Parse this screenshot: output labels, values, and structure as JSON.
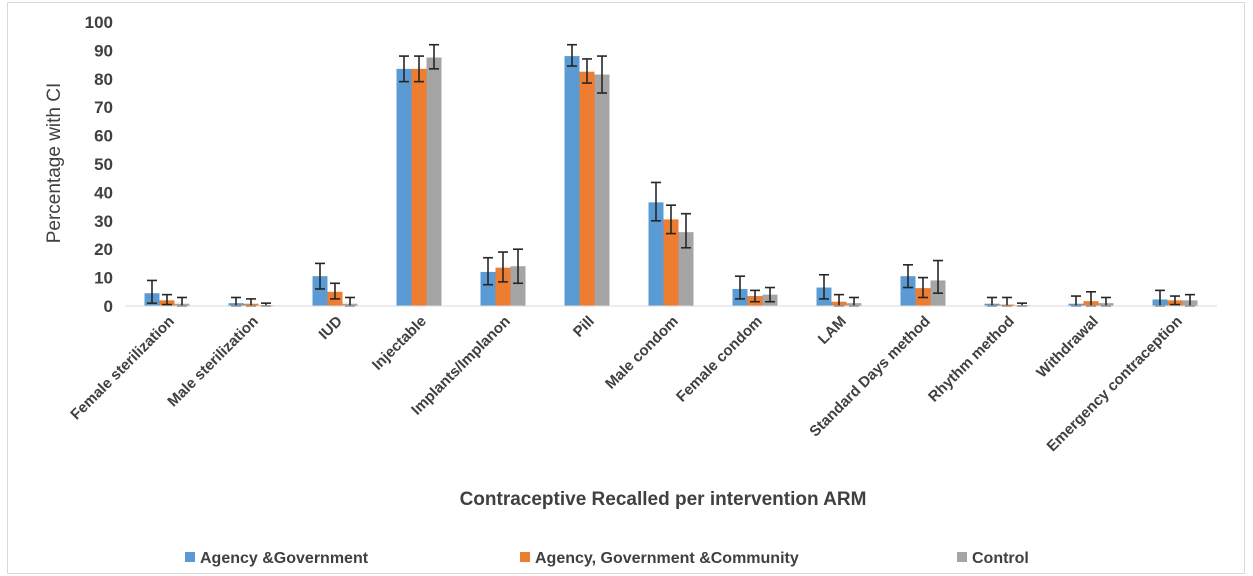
{
  "chart_data": {
    "type": "bar",
    "title": "",
    "xlabel": "Contraceptive Recalled per intervention ARM",
    "ylabel": "Percentage with CI",
    "ylim": [
      0,
      100
    ],
    "yticks": [
      0,
      10,
      20,
      30,
      40,
      50,
      60,
      70,
      80,
      90,
      100
    ],
    "grid": false,
    "legend_position": "bottom",
    "categories": [
      "Female sterilization",
      "Male sterilization",
      "IUD",
      "Injectable",
      "Implants/Implanon",
      "Pill",
      "Male condom",
      "Female condom",
      "LAM",
      "Standard Days method",
      "Rhythm method",
      "Withdrawal",
      "Emergency contraception"
    ],
    "series": [
      {
        "name": "Agency &Government",
        "color": "#5B9BD5",
        "values": [
          4.5,
          1.0,
          10.5,
          83.5,
          12.0,
          88.0,
          36.5,
          6.0,
          6.5,
          10.5,
          0.8,
          0.8,
          2.3
        ],
        "ci_low": [
          1.0,
          0.0,
          6.0,
          79.0,
          7.5,
          84.5,
          30.0,
          2.5,
          2.5,
          6.5,
          0.0,
          0.0,
          0.0
        ],
        "ci_high": [
          9.0,
          3.0,
          15.0,
          88.0,
          17.0,
          92.0,
          43.5,
          10.5,
          11.0,
          14.5,
          3.0,
          3.5,
          5.5
        ]
      },
      {
        "name": "Agency, Government &Community",
        "color": "#ED7D31",
        "values": [
          2.0,
          0.8,
          5.0,
          83.5,
          13.5,
          82.5,
          30.5,
          3.5,
          1.5,
          6.3,
          0.5,
          1.7,
          2.0
        ],
        "ci_low": [
          0.5,
          0.0,
          2.5,
          79.0,
          8.5,
          78.5,
          25.5,
          1.5,
          0.0,
          3.0,
          0.0,
          0.0,
          0.5
        ],
        "ci_high": [
          4.0,
          2.5,
          8.0,
          88.0,
          19.0,
          87.0,
          35.5,
          5.5,
          4.0,
          10.0,
          3.0,
          5.0,
          3.5
        ]
      },
      {
        "name": "Control",
        "color": "#A5A5A5",
        "values": [
          0.8,
          0.3,
          0.8,
          87.5,
          14.0,
          81.5,
          26.0,
          4.0,
          1.0,
          9.0,
          0.3,
          1.0,
          2.0
        ],
        "ci_low": [
          0.0,
          0.0,
          0.0,
          83.5,
          8.0,
          75.0,
          20.5,
          1.5,
          0.0,
          4.5,
          0.0,
          0.0,
          0.0
        ],
        "ci_high": [
          3.0,
          1.0,
          3.0,
          92.0,
          20.0,
          88.0,
          32.5,
          6.5,
          3.0,
          16.0,
          1.0,
          3.0,
          4.0
        ]
      }
    ]
  }
}
